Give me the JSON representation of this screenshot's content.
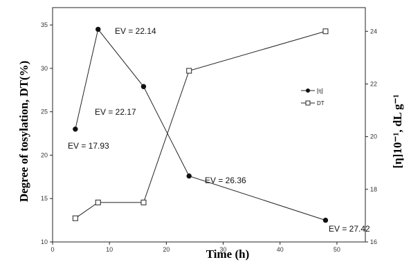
{
  "chart_data": {
    "type": "line",
    "xlabel": "Time (h)",
    "ylabel_left": "Degree of tosylation, DT(%)",
    "ylabel_right": "[η]10⁻¹, dL g⁻¹",
    "xlim": [
      0,
      55
    ],
    "ylim_left": [
      10,
      37
    ],
    "ylim_right": [
      16,
      24.9
    ],
    "x_ticks": [
      0,
      10,
      20,
      30,
      40,
      50
    ],
    "y_ticks_left": [
      10,
      15,
      20,
      25,
      30,
      35
    ],
    "y_ticks_right": [
      16,
      18,
      20,
      22,
      24
    ],
    "series": [
      {
        "name": "[η]",
        "marker": "filled-circle",
        "axis": "left",
        "x": [
          4,
          8,
          16,
          24,
          48
        ],
        "y": [
          23.0,
          34.5,
          27.9,
          17.6,
          12.5
        ]
      },
      {
        "name": "DT",
        "marker": "open-square",
        "axis": "right",
        "x": [
          4,
          8,
          16,
          24,
          48
        ],
        "y": [
          16.9,
          17.5,
          17.5,
          22.5,
          24.0
        ]
      }
    ],
    "annotations": [
      {
        "text": "EV = 22.14"
      },
      {
        "text": "EV = 22.17"
      },
      {
        "text": "EV = 17.93"
      },
      {
        "text": "EV = 26.36"
      },
      {
        "text": "EV = 27.42"
      }
    ],
    "legend": {
      "position": "right"
    },
    "grid": false
  }
}
